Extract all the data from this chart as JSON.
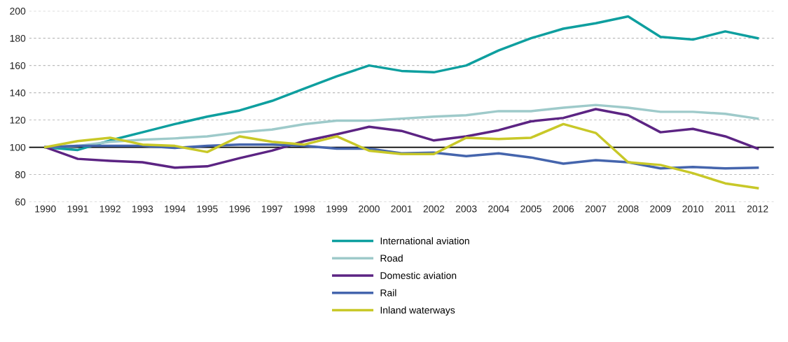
{
  "chart_data": {
    "type": "line",
    "categories": [
      "1990",
      "1991",
      "1992",
      "1993",
      "1994",
      "1995",
      "1996",
      "1997",
      "1998",
      "1999",
      "2000",
      "2001",
      "2002",
      "2003",
      "2004",
      "2005",
      "2006",
      "2007",
      "2008",
      "2009",
      "2010",
      "2011",
      "2012"
    ],
    "series": [
      {
        "name": "International aviation",
        "color": "#0e9f9f",
        "values": [
          100,
          98,
          105,
          111,
          117,
          122.5,
          127,
          134,
          143,
          152,
          160,
          156,
          155,
          160,
          171,
          180,
          187,
          191,
          196,
          181,
          179,
          185,
          180
        ]
      },
      {
        "name": "Road",
        "color": "#9ecaca",
        "values": [
          100,
          101,
          104,
          105.5,
          106.5,
          108,
          111,
          113,
          117,
          119.5,
          119.5,
          121,
          122.5,
          123.5,
          126.5,
          126.5,
          129,
          131,
          129,
          126,
          126,
          124.5,
          121
        ]
      },
      {
        "name": "Domestic aviation",
        "color": "#5c2483",
        "values": [
          100,
          91.5,
          90,
          89,
          85,
          86,
          92,
          97.5,
          104.5,
          109.5,
          115,
          112,
          105,
          108,
          112.5,
          119,
          121.5,
          128,
          123.5,
          111,
          113.5,
          108,
          99
        ]
      },
      {
        "name": "Rail",
        "color": "#4565ad",
        "values": [
          100,
          101,
          101,
          101,
          99.5,
          101,
          102,
          102,
          101,
          99,
          99,
          95.5,
          96,
          93.5,
          95.5,
          92.5,
          88,
          90.5,
          89,
          84.5,
          85.5,
          84.5,
          85
        ]
      },
      {
        "name": "Inland waterways",
        "color": "#c8c828",
        "values": [
          100,
          104.5,
          107,
          102,
          101,
          96.5,
          108,
          104,
          102,
          108,
          97.5,
          95,
          95,
          107,
          106,
          107,
          117,
          110.5,
          89,
          87,
          81,
          73.5,
          70
        ]
      }
    ],
    "ylim": [
      60,
      200
    ],
    "yticks": [
      60,
      80,
      100,
      120,
      140,
      160,
      180,
      200
    ],
    "grid": "y",
    "legend": "bottom",
    "line_style": "solid",
    "marker": "none",
    "ref_lines": [
      {
        "axis": "y",
        "value": 100,
        "color": "#000000"
      }
    ]
  }
}
